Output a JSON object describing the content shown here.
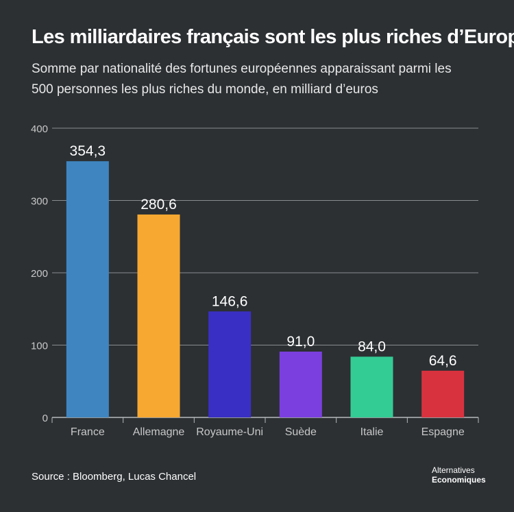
{
  "header": {
    "title": "Les milliardaires français sont les plus riches d’Europe",
    "subtitle": "Somme par nationalité des fortunes européennes apparaissant parmi les 500 personnes les plus riches du monde, en milliard d’euros"
  },
  "chart_data": {
    "type": "bar",
    "categories": [
      "France",
      "Allemagne",
      "Royaume-Uni",
      "Suède",
      "Italie",
      "Espagne"
    ],
    "values": [
      354.3,
      280.6,
      146.6,
      91.0,
      84.0,
      64.6
    ],
    "value_labels": [
      "354,3",
      "280,6",
      "146,6",
      "91,0",
      "84,0",
      "64,6"
    ],
    "colors": [
      "#3f86c1",
      "#f7a830",
      "#3a2fc4",
      "#7b3fe0",
      "#33cc95",
      "#d9323f"
    ],
    "ylim": [
      0,
      400
    ],
    "yticks": [
      0,
      100,
      200,
      300,
      400
    ],
    "grid": true,
    "xlabel": "",
    "ylabel": ""
  },
  "footer": {
    "source": "Source : Bloomberg, Lucas Chancel",
    "logo_line1": "Alternatives",
    "logo_line2": "Economiques"
  }
}
